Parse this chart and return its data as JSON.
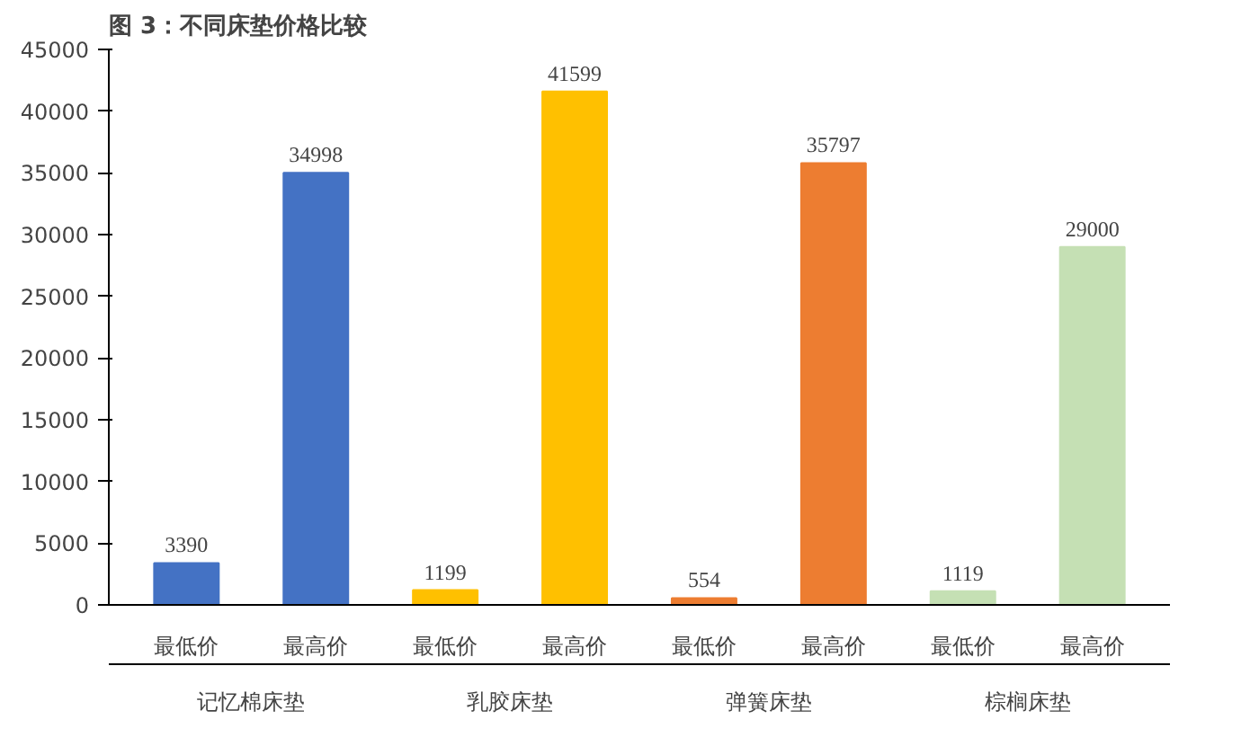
{
  "chart_data": {
    "type": "bar",
    "title": "图 3：不同床垫价格比较",
    "categories": [
      "最低价",
      "最高价",
      "最低价",
      "最高价",
      "最低价",
      "最高价",
      "最低价",
      "最高价"
    ],
    "values": [
      3390,
      34998,
      1199,
      41599,
      554,
      35797,
      1119,
      29000
    ],
    "colors": [
      "#4472c4",
      "#4472c4",
      "#ffc000",
      "#ffc000",
      "#ed7d31",
      "#ed7d31",
      "#c5e0b4",
      "#c5e0b4"
    ],
    "annotations": [
      "记忆棉床垫",
      "乳胶床垫",
      "弹簧床垫",
      "棕榈床垫"
    ],
    "ylim": [
      0,
      45000
    ],
    "yticks": [
      0,
      5000,
      10000,
      15000,
      20000,
      25000,
      30000,
      35000,
      40000,
      45000
    ],
    "data_labels": true,
    "grid": false
  }
}
